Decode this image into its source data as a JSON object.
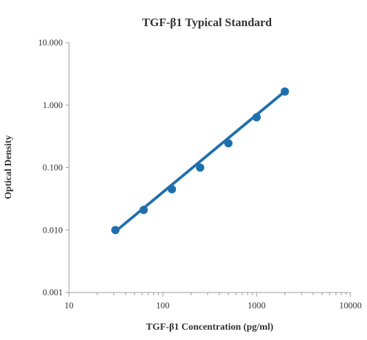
{
  "chart_data": {
    "type": "scatter",
    "title": "TGF-β1 Typical Standard",
    "xlabel": "TGF-β1 Concentration (pg/ml)",
    "ylabel": "Optical Density",
    "x_scale": "log",
    "y_scale": "log",
    "xlim": [
      10,
      10000
    ],
    "ylim": [
      0.001,
      10
    ],
    "x_ticks": [
      "10",
      "100",
      "1000",
      "10000"
    ],
    "y_ticks": [
      "0.001",
      "0.010",
      "0.100",
      "1.000",
      "10.000"
    ],
    "grid": false,
    "legend": "none",
    "color": "#1f6fad",
    "series": [
      {
        "x": [
          31.25,
          62.5,
          125,
          250,
          500,
          1000,
          2000
        ],
        "y": [
          0.01,
          0.021,
          0.045,
          0.1,
          0.245,
          0.64,
          1.65
        ]
      }
    ],
    "fit_line": {
      "x": [
        31.25,
        2000
      ],
      "y": [
        0.0095,
        1.66
      ]
    }
  }
}
